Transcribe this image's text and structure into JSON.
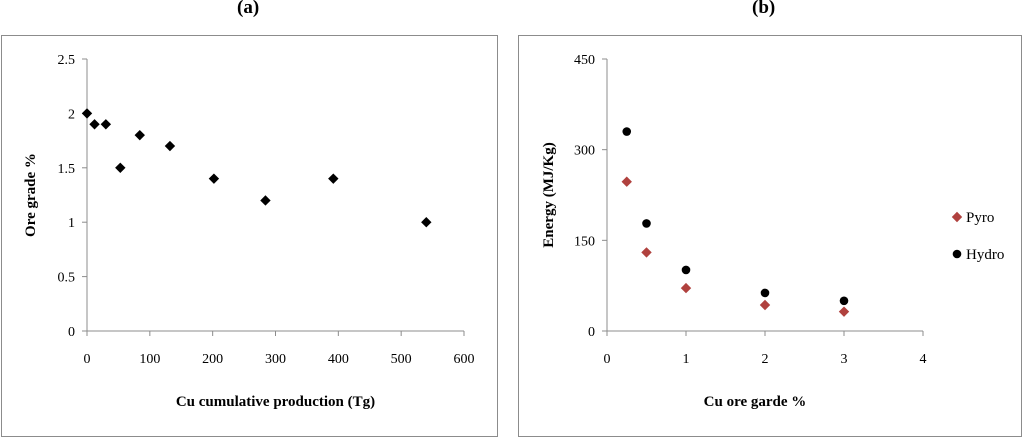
{
  "panels": {
    "a_label": "(a)",
    "b_label": "(b)"
  },
  "chart_data": [
    {
      "type": "scatter",
      "title": "",
      "xlabel": "Cu cumulative production (Tg)",
      "ylabel": "Ore grade %",
      "xlim": [
        0,
        600
      ],
      "ylim": [
        0,
        2.5
      ],
      "xticks": [
        "0",
        "100",
        "200",
        "300",
        "400",
        "500",
        "600"
      ],
      "yticks": [
        "0",
        "0.5",
        "1",
        "1.5",
        "2",
        "2.5"
      ],
      "grid": false,
      "series": [
        {
          "color": "#000000",
          "marker": "diamond",
          "points": [
            {
              "x": 0,
              "y": 2.0
            },
            {
              "x": 12,
              "y": 1.9
            },
            {
              "x": 30,
              "y": 1.9
            },
            {
              "x": 53,
              "y": 1.5
            },
            {
              "x": 84,
              "y": 1.8
            },
            {
              "x": 132,
              "y": 1.7
            },
            {
              "x": 202,
              "y": 1.4
            },
            {
              "x": 284,
              "y": 1.2
            },
            {
              "x": 392,
              "y": 1.4
            },
            {
              "x": 540,
              "y": 1.0
            }
          ]
        }
      ]
    },
    {
      "type": "scatter",
      "title": "",
      "xlabel": "Cu ore garde %",
      "ylabel": "Energy (MJ/Kg)",
      "xlim": [
        0,
        4
      ],
      "ylim": [
        0,
        450
      ],
      "xticks": [
        "0",
        "1",
        "2",
        "3",
        "4"
      ],
      "yticks": [
        "0",
        "150",
        "300",
        "450"
      ],
      "grid": false,
      "legend": "right",
      "series": [
        {
          "name": "Pyro",
          "color": "#b0413e",
          "marker": "diamond",
          "points": [
            {
              "x": 0.25,
              "y": 247
            },
            {
              "x": 0.5,
              "y": 130
            },
            {
              "x": 1.0,
              "y": 71
            },
            {
              "x": 2.0,
              "y": 43
            },
            {
              "x": 3.0,
              "y": 32
            }
          ]
        },
        {
          "name": "Hydro",
          "color": "#000000",
          "marker": "circle",
          "points": [
            {
              "x": 0.25,
              "y": 330
            },
            {
              "x": 0.5,
              "y": 178
            },
            {
              "x": 1.0,
              "y": 101
            },
            {
              "x": 2.0,
              "y": 63
            },
            {
              "x": 3.0,
              "y": 50
            }
          ]
        }
      ]
    }
  ]
}
